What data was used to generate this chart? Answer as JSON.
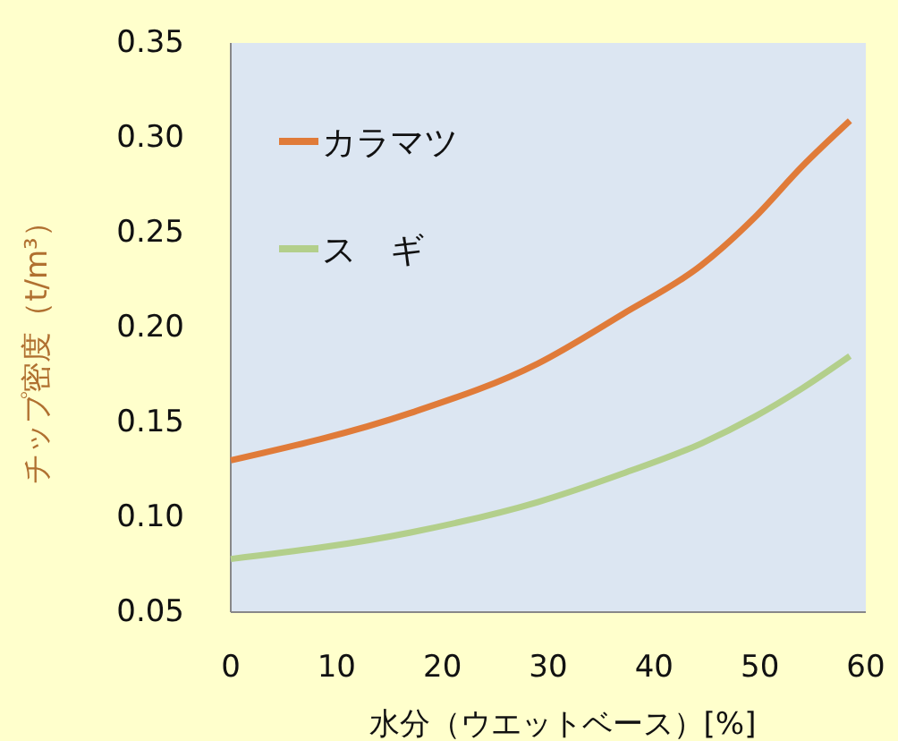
{
  "chart_data": {
    "type": "line",
    "xlabel": "水分（ウエットベース）[%]",
    "ylabel": "チップ密度（t/m³）",
    "x": [
      0,
      17,
      29,
      37,
      44.5,
      49.5,
      54,
      58.5
    ],
    "xlim": [
      0,
      60
    ],
    "xticks": [
      0,
      10,
      20,
      30,
      40,
      50,
      60
    ],
    "ylim": [
      0.05,
      0.35
    ],
    "yticks": [
      {
        "value": 0.05,
        "label": "0.05"
      },
      {
        "value": 0.1,
        "label": "0.10"
      },
      {
        "value": 0.15,
        "label": "0.15"
      },
      {
        "value": 0.2,
        "label": "0.20"
      },
      {
        "value": 0.25,
        "label": "0.25"
      },
      {
        "value": 0.3,
        "label": "0.30"
      },
      {
        "value": 0.35,
        "label": "0.35"
      }
    ],
    "series": [
      {
        "name": "カラマツ",
        "color": "#e07b39",
        "values": [
          0.13,
          0.155,
          0.181,
          0.207,
          0.233,
          0.258,
          0.285,
          0.309
        ]
      },
      {
        "name": "ス　ギ",
        "color": "#b3cf8b",
        "values": [
          0.078,
          0.092,
          0.108,
          0.123,
          0.139,
          0.153,
          0.168,
          0.185
        ]
      }
    ],
    "grid": false,
    "legend": "top left",
    "marker": "none",
    "line_style": "solid"
  }
}
